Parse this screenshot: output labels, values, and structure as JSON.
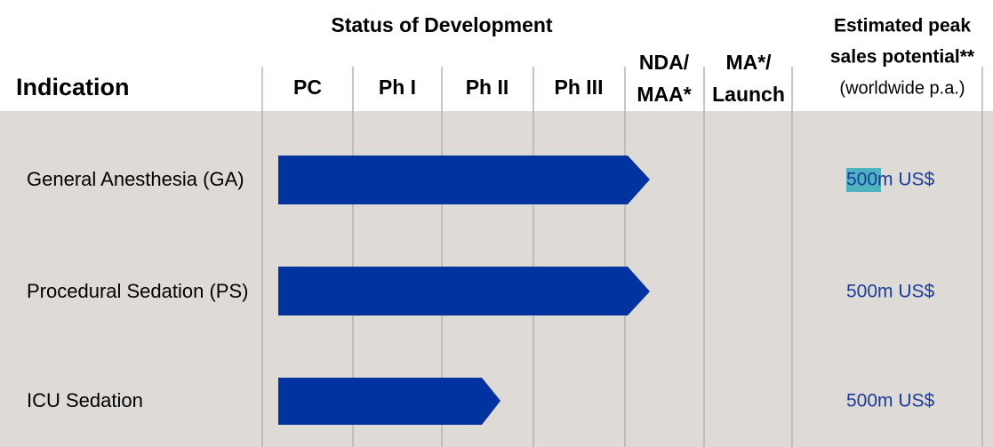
{
  "header": {
    "group_title": "Status of Development",
    "indication": "Indication",
    "stages": [
      "PC",
      "Ph I",
      "Ph II",
      "Ph III"
    ],
    "nda": [
      "NDA/",
      "MAA*"
    ],
    "launch": [
      "MA*/",
      "Launch"
    ],
    "sales": [
      "Estimated peak",
      "sales potential**",
      "(worldwide p.a.)"
    ]
  },
  "rows": [
    {
      "indication": "General Anesthesia (GA)",
      "sales": "500m US$"
    },
    {
      "indication": "Procedural Sedation (PS)",
      "sales": "500m US$"
    },
    {
      "indication": "ICU Sedation",
      "sales": "500m US$"
    }
  ]
}
